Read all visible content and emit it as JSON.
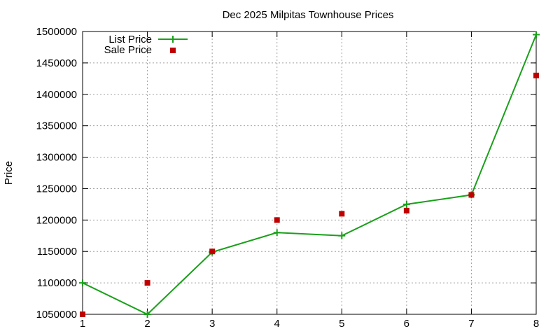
{
  "chart_data": {
    "type": "line",
    "title": "Dec 2025 Milpitas Townhouse Prices",
    "xlabel": "",
    "ylabel": "Price",
    "xlim": [
      1,
      8
    ],
    "ylim": [
      1050000,
      1500000
    ],
    "x_ticks": [
      "1",
      "2",
      "3",
      "4",
      "5",
      "6",
      "7",
      "8"
    ],
    "y_ticks": [
      "1050000",
      "1100000",
      "1150000",
      "1200000",
      "1250000",
      "1300000",
      "1350000",
      "1400000",
      "1450000",
      "1500000"
    ],
    "grid": true,
    "legend_position": "top-left",
    "series": [
      {
        "name": "List Price",
        "style": "line+cross",
        "color": "#1aa01a",
        "x": [
          1,
          2,
          3,
          4,
          5,
          6,
          7,
          8
        ],
        "y": [
          1100000,
          1050000,
          1149000,
          1180000,
          1175000,
          1225000,
          1240000,
          1495000
        ]
      },
      {
        "name": "Sale Price",
        "style": "square",
        "color": "#c00000",
        "x": [
          1,
          2,
          3,
          4,
          5,
          6,
          7,
          8
        ],
        "y": [
          1050000,
          1100000,
          1150000,
          1200000,
          1210000,
          1215000,
          1240000,
          1430000
        ]
      }
    ]
  }
}
